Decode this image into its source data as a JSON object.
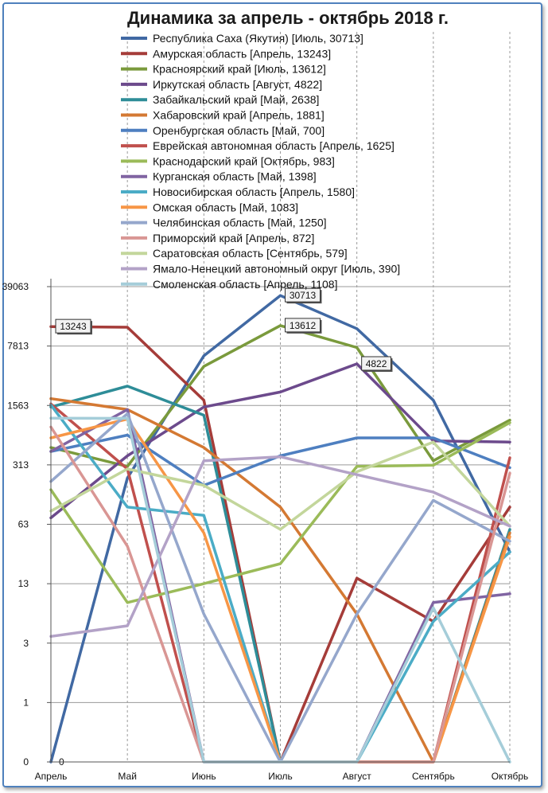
{
  "chart_data": {
    "type": "line",
    "title": "Динамика за апрель - октябрь 2018 г.",
    "xlabel": "",
    "ylabel": "",
    "y_scale": "log-like (0 shown at bottom)",
    "categories": [
      "Апрель",
      "Май",
      "Июнь",
      "Июль",
      "Август",
      "Сентябрь",
      "Октябрь"
    ],
    "y_ticks": [
      "0",
      "1",
      "3",
      "13",
      "63",
      "313",
      "1563",
      "7813",
      "39063"
    ],
    "grid": "horizontal and dashed vertical gridlines",
    "legend_position": "top",
    "series": [
      {
        "name": "Республика Саха (Якутия) [Июль, 30713]",
        "color": "#4169a3",
        "values": [
          0,
          220,
          6000,
          30713,
          12500,
          1800,
          30
        ]
      },
      {
        "name": "Амурская область [Апрель, 13243]",
        "color": "#a53c39",
        "values": [
          13243,
          13000,
          1800,
          0,
          15,
          5,
          100
        ]
      },
      {
        "name": "Красноярский край [Июль, 13612]",
        "color": "#7a9a3c",
        "values": [
          500,
          300,
          4500,
          13612,
          7500,
          350,
          1050
        ]
      },
      {
        "name": "Иркутская область [Август, 4822]",
        "color": "#6c4a8c",
        "values": [
          75,
          400,
          1500,
          2250,
          4822,
          600,
          580
        ]
      },
      {
        "name": "Забайкальский край [Май, 2638]",
        "color": "#2e8d98",
        "values": [
          1500,
          2638,
          1200,
          0,
          0,
          0,
          55
        ]
      },
      {
        "name": "Хабаровский край [Апрель, 1881]",
        "color": "#d47933",
        "values": [
          1881,
          1400,
          500,
          100,
          6,
          0,
          50
        ]
      },
      {
        "name": "Оренбургская область [Май, 700]",
        "color": "#4e7fc0",
        "values": [
          450,
          700,
          180,
          400,
          650,
          650,
          290
        ]
      },
      {
        "name": "Еврейская автономная область [Апрель, 1625]",
        "color": "#c0504d",
        "values": [
          1625,
          280,
          0,
          0,
          0,
          0,
          380
        ]
      },
      {
        "name": "Краснодарский край [Октябрь, 983]",
        "color": "#9bbb59",
        "values": [
          160,
          8,
          13,
          22,
          300,
          310,
          983
        ]
      },
      {
        "name": "Курганская область [Май, 1398]",
        "color": "#8064a2",
        "values": [
          450,
          1398,
          0,
          0,
          0,
          8,
          10
        ]
      },
      {
        "name": "Новосибирская область [Апрель, 1580]",
        "color": "#4bacc6",
        "values": [
          1580,
          100,
          80,
          0,
          0,
          5,
          30
        ]
      },
      {
        "name": "Омская область [Май, 1083]",
        "color": "#f79646",
        "values": [
          650,
          1083,
          50,
          0,
          0,
          0,
          45
        ]
      },
      {
        "name": "Челябинская область [Май, 1250]",
        "color": "#95a7cc",
        "values": [
          200,
          1250,
          6,
          0,
          6,
          120,
          40
        ]
      },
      {
        "name": "Приморский край [Апрель, 872]",
        "color": "#d99694",
        "values": [
          872,
          35,
          0,
          0,
          0,
          0,
          250
        ]
      },
      {
        "name": "Саратовская область [Сентябрь, 579]",
        "color": "#c3d69b",
        "values": [
          90,
          280,
          180,
          55,
          260,
          579,
          60
        ]
      },
      {
        "name": "Ямало-Ненецкий автономный округ [Июль, 390]",
        "color": "#b3a2c7",
        "values": [
          3.5,
          4.5,
          350,
          390,
          240,
          150,
          60
        ]
      },
      {
        "name": "Смоленская область [Апрель, 1108]",
        "color": "#a5cdd9",
        "values": [
          1108,
          1100,
          0,
          0,
          0,
          7,
          0
        ]
      }
    ],
    "data_labels": [
      {
        "series": 1,
        "index": 0,
        "text": "13243"
      },
      {
        "series": 0,
        "index": 3,
        "text": "30713"
      },
      {
        "series": 2,
        "index": 3,
        "text": "13612"
      },
      {
        "series": 3,
        "index": 4,
        "text": "4822"
      },
      {
        "series": 0,
        "index": 0,
        "text": "0"
      }
    ]
  }
}
